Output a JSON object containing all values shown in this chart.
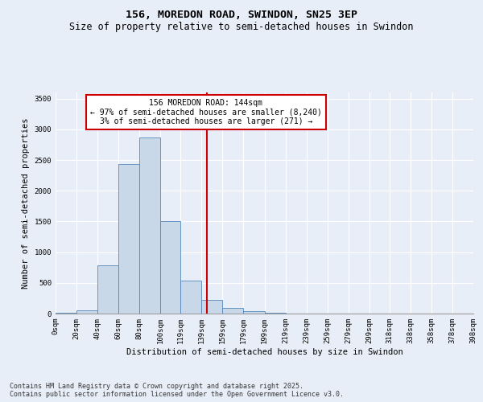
{
  "title1": "156, MOREDON ROAD, SWINDON, SN25 3EP",
  "title2": "Size of property relative to semi-detached houses in Swindon",
  "xlabel": "Distribution of semi-detached houses by size in Swindon",
  "ylabel": "Number of semi-detached properties",
  "bin_labels": [
    "0sqm",
    "20sqm",
    "40sqm",
    "60sqm",
    "80sqm",
    "100sqm",
    "119sqm",
    "139sqm",
    "159sqm",
    "179sqm",
    "199sqm",
    "219sqm",
    "239sqm",
    "259sqm",
    "279sqm",
    "299sqm",
    "318sqm",
    "338sqm",
    "358sqm",
    "378sqm",
    "398sqm"
  ],
  "hist_counts": [
    15,
    50,
    780,
    2440,
    2870,
    1510,
    540,
    220,
    90,
    35,
    10,
    5,
    2,
    1,
    1,
    0,
    0,
    0,
    0,
    0
  ],
  "bin_edges": [
    0,
    20,
    40,
    60,
    80,
    100,
    119,
    139,
    159,
    179,
    199,
    219,
    239,
    259,
    279,
    299,
    318,
    338,
    358,
    378,
    398
  ],
  "bar_color": "#c8d8e8",
  "bar_edge_color": "#5588bb",
  "property_line_x": 144,
  "property_line_color": "#cc0000",
  "annotation_text": "156 MOREDON ROAD: 144sqm\n← 97% of semi-detached houses are smaller (8,240)\n3% of semi-detached houses are larger (271) →",
  "annotation_box_color": "#ffffff",
  "annotation_box_edge": "#cc0000",
  "ylim": [
    0,
    3600
  ],
  "yticks": [
    0,
    500,
    1000,
    1500,
    2000,
    2500,
    3000,
    3500
  ],
  "bg_color": "#e8eef8",
  "footer_text": "Contains HM Land Registry data © Crown copyright and database right 2025.\nContains public sector information licensed under the Open Government Licence v3.0.",
  "title_fontsize": 9.5,
  "subtitle_fontsize": 8.5,
  "label_fontsize": 7.5,
  "tick_fontsize": 6.5,
  "footer_fontsize": 6.0,
  "annotation_fontsize": 7.0
}
